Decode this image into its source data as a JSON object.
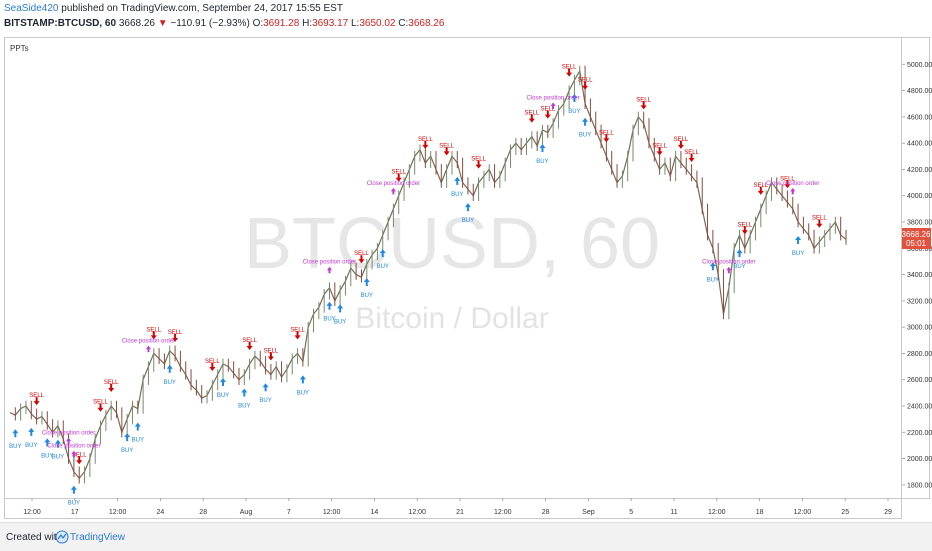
{
  "header": {
    "author": "SeaSide420",
    "published_text": "published on TradingView.com, September 24, 2017 15:55 EST",
    "symbol": "BITSTAMP:BTCUSD, 60",
    "last": "3668.26",
    "change_arrow": "▼",
    "change": "−110.91 (−2.93%)",
    "o_label": "O:",
    "o": "3691.28",
    "h_label": "H:",
    "h": "3693.17",
    "l_label": "L:",
    "l": "3650.02",
    "c_label": "C:",
    "c": "3668.26"
  },
  "indicator_label": "PPTs",
  "watermark": {
    "symbol": "BTCUSD, 60",
    "description": "Bitcoin / Dollar"
  },
  "price_axis": {
    "last_price_label": "3668.26",
    "countdown": "05:01",
    "last_price_color": "#e0513e"
  },
  "footer": {
    "created_with": "Created with",
    "brand": "TradingView"
  },
  "colors": {
    "buy": "#1e88e5",
    "sell": "#d50000",
    "close": "#c336d8",
    "candle": "#7a6a5a"
  },
  "chart_data": {
    "type": "line",
    "ylim": [
      1700,
      5200
    ],
    "yticks": [
      1800,
      2000,
      2200,
      2400,
      2600,
      2800,
      3000,
      3200,
      3400,
      3600,
      3800,
      4000,
      4200,
      4400,
      4600,
      4800,
      5000
    ],
    "xticks": [
      "12:00",
      "17",
      "12:00",
      "24",
      "28",
      "Aug",
      "7",
      "12:00",
      "14",
      "12:00",
      "21",
      "12:00",
      "28",
      "Sep",
      "5",
      "11",
      "12:00",
      "18",
      "12:00",
      "25",
      "29"
    ],
    "series": [
      {
        "values": [
          2350,
          2330,
          2380,
          2400,
          2340,
          2300,
          2320,
          2260,
          2200,
          2250,
          2150,
          2000,
          1900,
          1850,
          1900,
          2000,
          2150,
          2250,
          2330,
          2400,
          2350,
          2200,
          2300,
          2400,
          2380,
          2600,
          2700,
          2800,
          2760,
          2720,
          2820,
          2780,
          2700,
          2640,
          2560,
          2520,
          2460,
          2480,
          2560,
          2640,
          2720,
          2700,
          2650,
          2600,
          2640,
          2720,
          2780,
          2740,
          2680,
          2640,
          2700,
          2620,
          2680,
          2760,
          2800,
          2740,
          3000,
          3100,
          3150,
          3250,
          3300,
          3200,
          3280,
          3350,
          3450,
          3400,
          3380,
          3480,
          3550,
          3600,
          3700,
          3800,
          3900,
          4000,
          4100,
          4200,
          4300,
          4350,
          4250,
          4300,
          4200,
          4100,
          4200,
          4300,
          4250,
          4100,
          4050,
          4000,
          4100,
          4150,
          4200,
          4100,
          4150,
          4250,
          4350,
          4400,
          4350,
          4400,
          4450,
          4380,
          4500,
          4480,
          4550,
          4650,
          4700,
          4800,
          4880,
          4950,
          4700,
          4600,
          4500,
          4400,
          4300,
          4200,
          4100,
          4150,
          4300,
          4500,
          4600,
          4550,
          4400,
          4300,
          4200,
          4250,
          4150,
          4300,
          4250,
          4200,
          4150,
          4100,
          3900,
          3700,
          3600,
          3400,
          3100,
          3300,
          3600,
          3700,
          3600,
          3700,
          3800,
          3900,
          4000,
          4100,
          4050,
          4000,
          3950,
          3900,
          3800,
          3750,
          3700,
          3600,
          3650,
          3700,
          3750,
          3800,
          3700,
          3668
        ]
      }
    ],
    "buy_signals": [
      [
        0.5,
        "BUY"
      ],
      [
        4,
        "BUY"
      ],
      [
        7,
        "BUY"
      ],
      [
        9,
        "BUY"
      ],
      [
        12,
        "BUY"
      ],
      [
        22,
        "BUY"
      ],
      [
        24,
        "BUY"
      ],
      [
        30,
        "BUY"
      ],
      [
        40,
        "BUY"
      ],
      [
        44,
        "BUY"
      ],
      [
        48,
        "BUY"
      ],
      [
        55,
        "BUY"
      ],
      [
        60,
        "BUY"
      ],
      [
        62,
        "BUY"
      ],
      [
        67,
        "BUY"
      ],
      [
        70,
        "BUY"
      ],
      [
        84,
        "BUY"
      ],
      [
        86,
        "BUY"
      ],
      [
        100,
        "BUY"
      ],
      [
        106,
        "BUY"
      ],
      [
        108,
        "BUY"
      ],
      [
        132,
        "BUY"
      ],
      [
        137,
        "BUY"
      ],
      [
        148,
        "BUY"
      ],
      [
        158,
        "BUY"
      ]
    ],
    "sell_signals": [
      [
        5,
        "SELL"
      ],
      [
        13,
        "SELL"
      ],
      [
        17,
        "SELL"
      ],
      [
        19,
        "SELL"
      ],
      [
        27,
        "SELL"
      ],
      [
        31,
        "SELL"
      ],
      [
        38,
        "SELL"
      ],
      [
        45,
        "SELL"
      ],
      [
        49,
        "SELL"
      ],
      [
        54,
        "SELL"
      ],
      [
        66,
        "SELL"
      ],
      [
        73,
        "SELL"
      ],
      [
        78,
        "SELL"
      ],
      [
        82,
        "SELL"
      ],
      [
        88,
        "SELL"
      ],
      [
        98,
        "SELL"
      ],
      [
        101,
        "SELL"
      ],
      [
        105,
        "SELL"
      ],
      [
        108,
        "SELL"
      ],
      [
        112,
        "SELL"
      ],
      [
        119,
        "SELL"
      ],
      [
        122,
        "SELL"
      ],
      [
        126,
        "SELL"
      ],
      [
        128,
        "SELL"
      ],
      [
        138,
        "SELL"
      ],
      [
        141,
        "SELL"
      ],
      [
        146,
        "SELL"
      ],
      [
        152,
        "SELL"
      ],
      [
        160,
        "SELL"
      ]
    ],
    "close_orders": [
      [
        12,
        "Close position order"
      ],
      [
        11,
        "Close position order"
      ],
      [
        26,
        "Close position order"
      ],
      [
        60,
        "Close position order"
      ],
      [
        72,
        "Close position order"
      ],
      [
        102,
        "Close position order"
      ],
      [
        135,
        "Close position order"
      ],
      [
        147,
        "Close position order"
      ]
    ]
  }
}
